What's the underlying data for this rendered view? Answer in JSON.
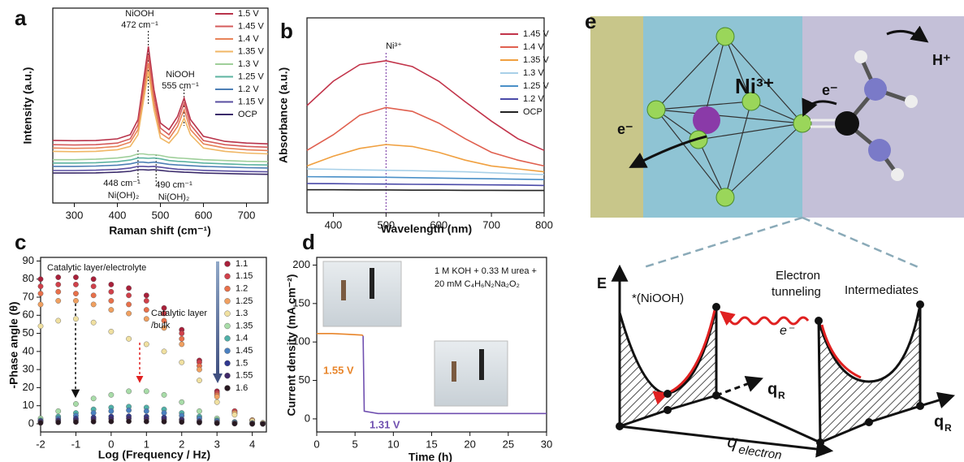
{
  "chart_data": [
    {
      "type": "line",
      "panel_label": "a",
      "x_label": "Raman shift (cm⁻¹)",
      "y_label": "Intensity (a.u.)",
      "x": [
        250,
        300,
        350,
        400,
        430,
        448,
        460,
        472,
        485,
        500,
        520,
        540,
        555,
        570,
        600,
        650,
        700,
        750
      ],
      "xlim": [
        250,
        750
      ],
      "xticks": [
        300,
        400,
        500,
        600,
        700
      ],
      "ylim": [
        0,
        117
      ],
      "series": [
        {
          "name": "1.5 V",
          "color": "#b8334a",
          "values": [
            37.6,
            37.4,
            37.5,
            38.5,
            41,
            50,
            72,
            94,
            68,
            48,
            44,
            52,
            63,
            50,
            40,
            37,
            36,
            35.5
          ]
        },
        {
          "name": "1.45 V",
          "color": "#d45b5b",
          "values": [
            35,
            34.8,
            35,
            36,
            38.5,
            47,
            68,
            89,
            64,
            45,
            41,
            49,
            60,
            47,
            37.5,
            35,
            34,
            33.5
          ]
        },
        {
          "name": "1.4 V",
          "color": "#e8845a",
          "values": [
            33,
            32.8,
            33,
            34,
            36.5,
            44,
            64,
            84,
            60,
            42,
            38.5,
            46,
            56,
            44,
            35.5,
            33,
            32,
            31.5
          ]
        },
        {
          "name": "1.35 V",
          "color": "#f0b765",
          "values": [
            31,
            30.8,
            31,
            32,
            34,
            41,
            60,
            79,
            56,
            39,
            36,
            42,
            51,
            41,
            33,
            31,
            30,
            29.5
          ]
        },
        {
          "name": "1.3 V",
          "color": "#9fcf9a",
          "values": [
            26,
            26,
            26.3,
            27,
            28,
            29.5,
            29.5,
            29,
            29,
            28.5,
            27.5,
            27,
            26.8,
            26.5,
            26,
            25.5,
            25,
            24.8
          ]
        },
        {
          "name": "1.25 V",
          "color": "#5db3a0",
          "values": [
            24,
            24,
            24.2,
            24.8,
            25.8,
            27,
            27,
            26.8,
            27,
            26.5,
            25.5,
            25,
            24.8,
            24.5,
            24,
            23.5,
            23,
            22.8
          ]
        },
        {
          "name": "1.2 V",
          "color": "#4d7fb5",
          "values": [
            22,
            22,
            22.2,
            22.7,
            23.5,
            24.5,
            24.5,
            24.2,
            24.5,
            24,
            23.2,
            22.8,
            22.6,
            22.4,
            22,
            21.6,
            21.2,
            21
          ]
        },
        {
          "name": "1.15 V",
          "color": "#5a4fa0",
          "values": [
            19.5,
            19.5,
            19.7,
            20.2,
            21,
            22,
            22,
            21.8,
            22,
            21.5,
            20.8,
            20.3,
            20.1,
            20,
            19.6,
            19.2,
            18.9,
            18.7
          ]
        },
        {
          "name": "OCP",
          "color": "#3b2b6b",
          "values": [
            18,
            18,
            18.1,
            18.5,
            19,
            20,
            20,
            19.8,
            20,
            19.6,
            19,
            18.7,
            18.5,
            18.4,
            18,
            17.7,
            17.4,
            17.2
          ]
        }
      ],
      "vlines": [
        472,
        555,
        448,
        490
      ],
      "annotations": [
        "NiOOH",
        "472 cm⁻¹",
        "NiOOH",
        "555 cm⁻¹",
        "448 cm⁻¹",
        "Ni(OH)₂",
        "490 cm⁻¹",
        "Ni(OH)₂"
      ]
    },
    {
      "type": "line",
      "panel_label": "b",
      "x_label": "Wavelength (nm)",
      "y_label": "Absorbance (a.u.)",
      "x": [
        350,
        400,
        450,
        500,
        550,
        600,
        650,
        700,
        750,
        800
      ],
      "xlim": [
        350,
        800
      ],
      "xticks": [
        400,
        500,
        600,
        700,
        800
      ],
      "ylim": [
        0,
        100
      ],
      "series": [
        {
          "name": "1.45 V",
          "color": "#c2344a",
          "values": [
            55,
            67.5,
            76,
            78,
            75,
            67.5,
            57,
            47,
            38,
            32
          ]
        },
        {
          "name": "1.4 V",
          "color": "#e0604f",
          "values": [
            32,
            40,
            50,
            54,
            52,
            46,
            38,
            31,
            27,
            24
          ]
        },
        {
          "name": "1.35 V",
          "color": "#f0a040",
          "values": [
            24,
            29,
            33,
            35,
            34,
            31,
            27,
            24,
            22.5,
            21
          ]
        },
        {
          "name": "1.3 V",
          "color": "#a8d0e8",
          "values": [
            22.5,
            22.3,
            22,
            21.8,
            21.6,
            21.3,
            21,
            20.5,
            20,
            19.6
          ]
        },
        {
          "name": "1.25 V",
          "color": "#4a90c8",
          "values": [
            18.5,
            18.4,
            18.3,
            18.2,
            18,
            17.8,
            17.6,
            17.4,
            17.2,
            17
          ]
        },
        {
          "name": "1.2 V",
          "color": "#4a4aa8",
          "values": [
            15,
            14.9,
            14.8,
            14.7,
            14.6,
            14.5,
            14.4,
            14.3,
            14.2,
            14
          ]
        },
        {
          "name": "OCP",
          "color": "#222222",
          "values": [
            11.8,
            11.8,
            11.7,
            11.7,
            11.6,
            11.6,
            11.5,
            11.5,
            11.4,
            11.4
          ]
        }
      ],
      "vlines": [
        500
      ],
      "annotations": [
        "Ni³⁺"
      ]
    },
    {
      "type": "scatter",
      "panel_label": "c",
      "x_label": "Log (Frequency / Hz)",
      "y_label": "-Phase angle (θ)",
      "x": [
        -2,
        -1.5,
        -1,
        -0.5,
        0,
        0.5,
        1,
        1.5,
        2,
        2.5,
        3,
        3.5,
        4,
        4.3
      ],
      "xlim": [
        -2,
        4.4
      ],
      "xticks": [
        -2,
        -1,
        0,
        1,
        2,
        3,
        4
      ],
      "ylim": [
        -4.5,
        92
      ],
      "yticks": [
        0,
        10,
        20,
        30,
        40,
        50,
        60,
        70,
        80,
        90
      ],
      "series": [
        {
          "name": "1.1",
          "color": "#a8203a",
          "values": [
            80,
            81,
            81,
            80,
            77,
            75,
            71,
            64,
            52,
            35,
            18,
            7,
            2,
            0.5
          ]
        },
        {
          "name": "1.15",
          "color": "#d0404a",
          "values": [
            76,
            77,
            77,
            76,
            73,
            71,
            68,
            61,
            50,
            34,
            17,
            7,
            2,
            0.5
          ]
        },
        {
          "name": "1.2",
          "color": "#e8704a",
          "values": [
            72,
            73,
            72,
            71,
            68,
            66,
            63,
            57,
            47,
            32,
            16,
            6,
            2,
            0.5
          ]
        },
        {
          "name": "1.25",
          "color": "#f0a060",
          "values": [
            66,
            68,
            68,
            66,
            63,
            61,
            58,
            53,
            44,
            30,
            15,
            6,
            2,
            0.5
          ]
        },
        {
          "name": "1.3",
          "color": "#f0e0a0",
          "values": [
            54,
            57,
            58,
            56,
            51,
            47,
            44,
            40,
            34,
            24,
            12,
            5,
            1.5,
            0.5
          ]
        },
        {
          "name": "1.35",
          "color": "#a8dca8",
          "values": [
            3,
            7,
            11,
            14,
            16,
            18,
            18,
            16,
            12,
            7,
            3,
            1,
            0.5,
            0
          ]
        },
        {
          "name": "1.4",
          "color": "#50b0a8",
          "values": [
            2,
            4,
            6,
            8,
            9,
            9.5,
            9,
            8,
            6,
            4,
            2,
            1,
            0.3,
            0
          ]
        },
        {
          "name": "1.45",
          "color": "#4a80c0",
          "values": [
            1.5,
            3,
            4.5,
            6,
            7,
            7.5,
            7,
            6,
            4.5,
            3,
            1.5,
            0.7,
            0.3,
            0
          ]
        },
        {
          "name": "1.5",
          "color": "#303890",
          "values": [
            1.5,
            2,
            3,
            3.5,
            4,
            4.2,
            4,
            3.5,
            2.5,
            1.5,
            0.8,
            0.3,
            0,
            0
          ]
        },
        {
          "name": "1.55",
          "color": "#402868",
          "values": [
            1,
            1.5,
            2,
            2.5,
            2.8,
            3,
            2.8,
            2.5,
            2,
            1.2,
            0.6,
            0.2,
            0,
            0
          ]
        },
        {
          "name": "1.6",
          "color": "#281820",
          "values": [
            0.5,
            0.8,
            1,
            1.2,
            1.3,
            1.4,
            1.3,
            1.2,
            1,
            0.7,
            0.3,
            0.1,
            0,
            0
          ]
        }
      ],
      "annotations": [
        "Catalytic layer/electrolyte",
        "Catalytic layer",
        "/bulk"
      ]
    },
    {
      "type": "line",
      "panel_label": "d",
      "x_label": "Time (h)",
      "y_label": "Current density (mA cm⁻²)",
      "xlim": [
        0,
        30
      ],
      "xticks": [
        0,
        5,
        10,
        15,
        20,
        25,
        30
      ],
      "ylim": [
        -17,
        210
      ],
      "yticks": [
        0,
        50,
        100,
        150,
        200
      ],
      "series": [
        {
          "name": "1.55 V",
          "color": "#e8852a",
          "x": [
            0,
            2,
            4,
            5.9,
            6.05
          ],
          "values": [
            111,
            111,
            110,
            109,
            108
          ]
        },
        {
          "name": "1.31 V",
          "color": "#7050b0",
          "x": [
            6.05,
            6.2,
            8,
            30
          ],
          "values": [
            108,
            10,
            7,
            7
          ]
        }
      ],
      "annotations": [
        "1 M KOH + 0.33 M urea +",
        "20 mM C₄H₆N₂Na₂O₂"
      ]
    }
  ],
  "diagram": {
    "panel_label": "e",
    "top_labels": [
      "Ni³⁺",
      "e⁻",
      "e⁻",
      "H⁺"
    ],
    "energy_axis": "E",
    "left_state": "*(NiOOH)",
    "tunneling": [
      "Electron",
      "tunneling"
    ],
    "right_state": "Intermediates",
    "electron": "e⁻",
    "q_r": {
      "main": "q",
      "sub": "R"
    },
    "q_r_front": {
      "main": "q",
      "sub": "R"
    },
    "q_electron": {
      "main": "q",
      "sub": "electron"
    }
  }
}
